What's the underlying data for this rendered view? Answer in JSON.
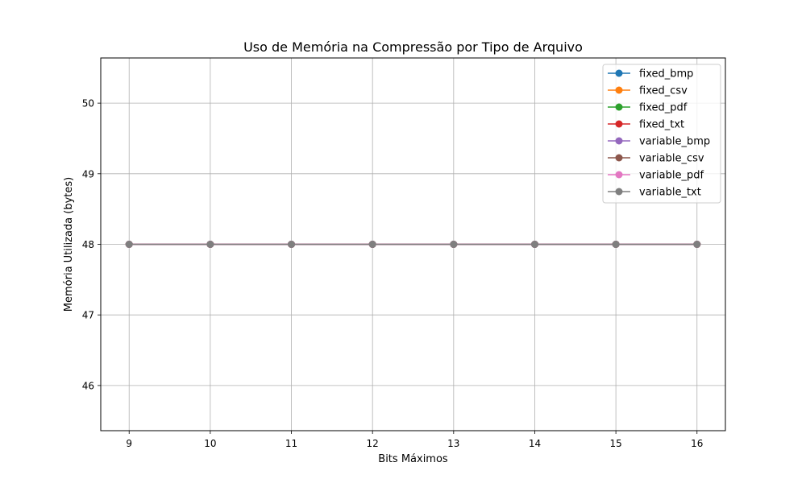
{
  "chart_data": {
    "type": "line",
    "title": "Uso de Memória na Compressão por Tipo de Arquivo",
    "xlabel": "Bits Máximos",
    "ylabel": "Memória Utilizada (bytes)",
    "x": [
      9,
      10,
      11,
      12,
      13,
      14,
      15,
      16
    ],
    "xticks": [
      "9",
      "10",
      "11",
      "12",
      "13",
      "14",
      "15",
      "16"
    ],
    "yticks": [
      "46",
      "47",
      "48",
      "49",
      "50"
    ],
    "xlim": [
      8.65,
      16.35
    ],
    "ylim": [
      45.36,
      50.64
    ],
    "grid": true,
    "legend_position": "top-right",
    "series": [
      {
        "name": "fixed_bmp",
        "color": "#1f77b4",
        "values": [
          48,
          48,
          48,
          48,
          48,
          48,
          48,
          48
        ]
      },
      {
        "name": "fixed_csv",
        "color": "#ff7f0e",
        "values": [
          48,
          48,
          48,
          48,
          48,
          48,
          48,
          48
        ]
      },
      {
        "name": "fixed_pdf",
        "color": "#2ca02c",
        "values": [
          48,
          48,
          48,
          48,
          48,
          48,
          48,
          48
        ]
      },
      {
        "name": "fixed_txt",
        "color": "#d62728",
        "values": [
          48,
          48,
          48,
          48,
          48,
          48,
          48,
          48
        ]
      },
      {
        "name": "variable_bmp",
        "color": "#9467bd",
        "values": [
          48,
          48,
          48,
          48,
          48,
          48,
          48,
          48
        ]
      },
      {
        "name": "variable_csv",
        "color": "#8c564b",
        "values": [
          48,
          48,
          48,
          48,
          48,
          48,
          48,
          48
        ]
      },
      {
        "name": "variable_pdf",
        "color": "#e377c2",
        "values": [
          48,
          48,
          48,
          48,
          48,
          48,
          48,
          48
        ]
      },
      {
        "name": "variable_txt",
        "color": "#7f7f7f",
        "values": [
          48,
          48,
          48,
          48,
          48,
          48,
          48,
          48
        ]
      }
    ]
  }
}
